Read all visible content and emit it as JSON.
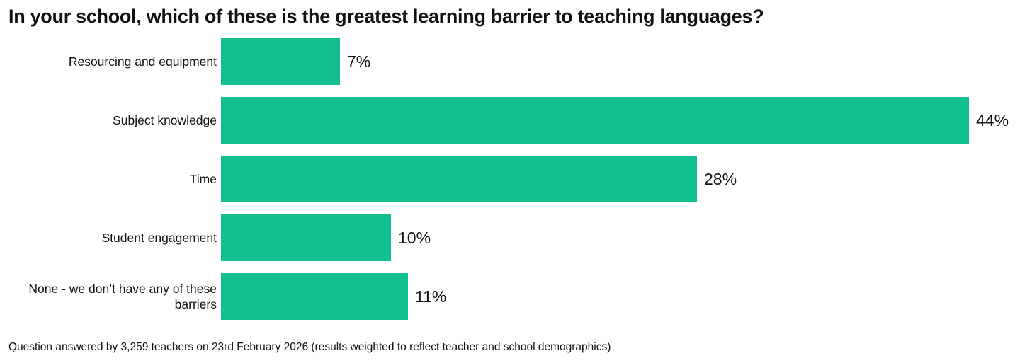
{
  "chart_data": {
    "type": "bar",
    "orientation": "horizontal",
    "title": "In your school, which of these is the greatest learning barrier to teaching languages?",
    "categories": [
      "Resourcing and equipment",
      "Subject knowledge",
      "Time",
      "Student engagement",
      "None - we don’t have any of these barriers"
    ],
    "values": [
      7,
      44,
      28,
      10,
      11
    ],
    "value_labels": [
      "7%",
      "44%",
      "28%",
      "10%",
      "11%"
    ],
    "color": "#12bf91",
    "note": "Question answered by 3,259 teachers on 23rd February 2026 (results weighted to reflect teacher and school demographics)"
  }
}
